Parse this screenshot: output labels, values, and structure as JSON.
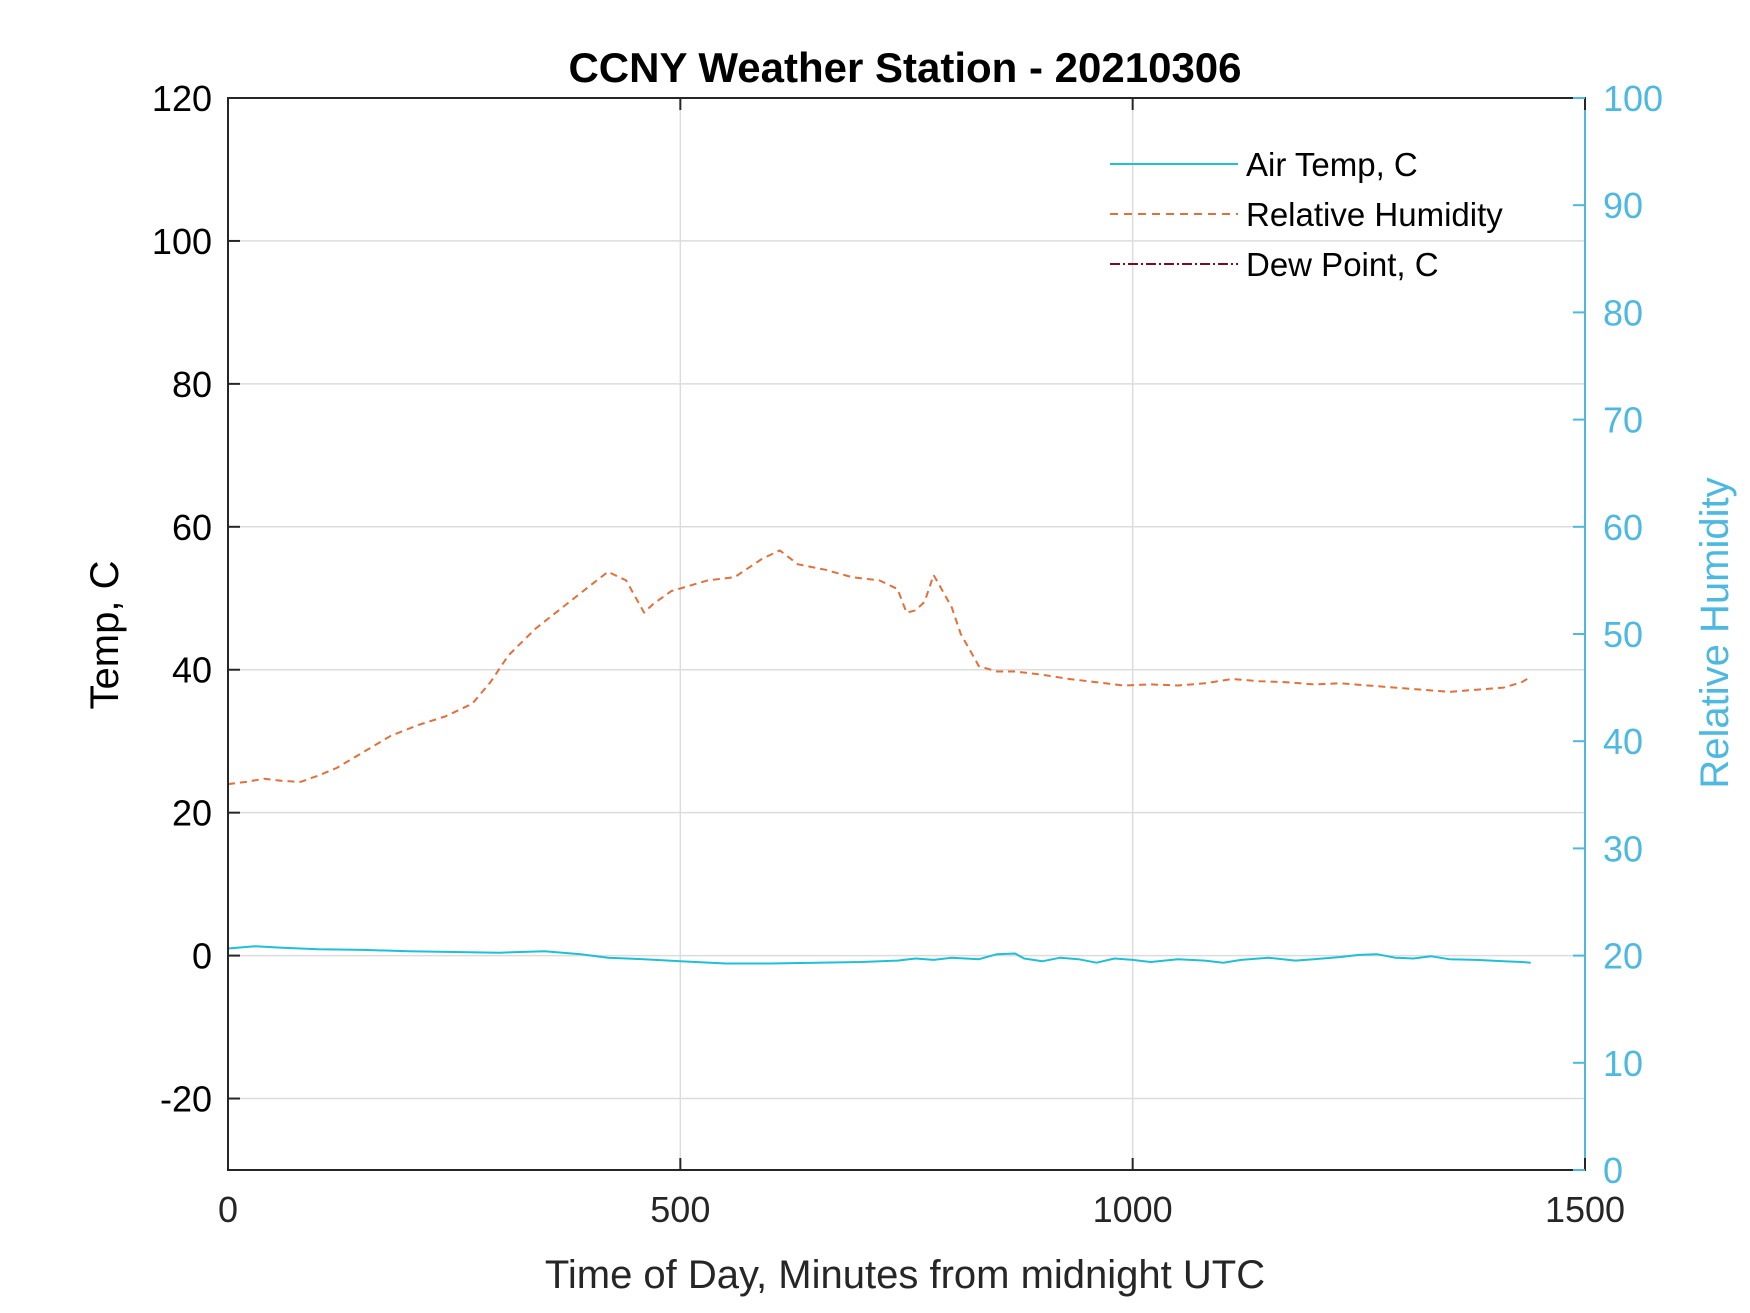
{
  "chart_data": {
    "type": "line",
    "title": "CCNY Weather Station - 20210306",
    "xlabel": "Time of Day, Minutes from midnight UTC",
    "ylabel_left": "Temp, C",
    "ylabel_right": "Relative Humidity",
    "xlim": [
      0,
      1500
    ],
    "ylim_left": [
      -30,
      120
    ],
    "ylim_right": [
      0,
      100
    ],
    "x_ticks": [
      "0",
      "500",
      "1000",
      "1500"
    ],
    "y_ticks_left": [
      "120",
      "100",
      "80",
      "60",
      "40",
      "20",
      "0",
      "-20"
    ],
    "y_ticks_right": [
      "100",
      "90",
      "80",
      "70",
      "60",
      "50",
      "40",
      "30",
      "20",
      "10",
      "0"
    ],
    "grid": true,
    "legend_position": "top-right",
    "colors": {
      "air_temp": "#1fbfd6",
      "relative_humidity": "#e2703a",
      "dew_point": "#7a0e1e",
      "right_axis": "#4db8e0",
      "grid": "#dcdcdc",
      "axis": "#262626"
    },
    "series": [
      {
        "name": "Air Temp, C",
        "axis": "left",
        "style": "solid",
        "x": [
          0,
          30,
          60,
          100,
          150,
          200,
          250,
          300,
          350,
          390,
          420,
          460,
          500,
          550,
          600,
          650,
          700,
          740,
          760,
          780,
          800,
          830,
          850,
          870,
          880,
          900,
          920,
          940,
          960,
          980,
          1000,
          1020,
          1050,
          1080,
          1100,
          1120,
          1150,
          1180,
          1200,
          1230,
          1250,
          1270,
          1290,
          1310,
          1330,
          1350,
          1380,
          1410,
          1430,
          1440
        ],
        "values": [
          1.0,
          1.3,
          1.1,
          0.9,
          0.8,
          0.6,
          0.5,
          0.4,
          0.6,
          0.2,
          -0.3,
          -0.5,
          -0.8,
          -1.1,
          -1.1,
          -1.0,
          -0.9,
          -0.7,
          -0.4,
          -0.6,
          -0.3,
          -0.5,
          0.2,
          0.3,
          -0.4,
          -0.8,
          -0.3,
          -0.5,
          -1.0,
          -0.4,
          -0.6,
          -0.9,
          -0.5,
          -0.7,
          -1.0,
          -0.6,
          -0.3,
          -0.7,
          -0.5,
          -0.2,
          0.1,
          0.2,
          -0.3,
          -0.4,
          -0.1,
          -0.5,
          -0.6,
          -0.8,
          -0.9,
          -1.0
        ]
      },
      {
        "name": "Relative Humidity",
        "axis": "right",
        "style": "dashed",
        "x": [
          0,
          20,
          40,
          60,
          80,
          100,
          120,
          150,
          180,
          210,
          240,
          270,
          290,
          310,
          340,
          370,
          400,
          420,
          440,
          460,
          470,
          490,
          510,
          530,
          560,
          590,
          610,
          630,
          660,
          690,
          720,
          740,
          750,
          760,
          770,
          780,
          790,
          800,
          810,
          830,
          850,
          870,
          900,
          930,
          960,
          990,
          1020,
          1050,
          1080,
          1110,
          1140,
          1170,
          1200,
          1230,
          1260,
          1290,
          1320,
          1350,
          1380,
          1410,
          1430,
          1440
        ],
        "values": [
          36,
          36.2,
          36.5,
          36.3,
          36.2,
          36.8,
          37.5,
          39,
          40.5,
          41.5,
          42.3,
          43.5,
          45.5,
          48,
          50.5,
          52.5,
          54.5,
          55.8,
          55,
          52,
          52.8,
          54,
          54.5,
          55,
          55.3,
          57,
          57.8,
          56.5,
          56,
          55.3,
          55,
          54.2,
          52,
          52.2,
          53,
          55.5,
          54,
          52.5,
          50,
          47,
          46.5,
          46.5,
          46.2,
          45.8,
          45.5,
          45.2,
          45.3,
          45.2,
          45.4,
          45.8,
          45.6,
          45.5,
          45.3,
          45.4,
          45.2,
          45.0,
          44.8,
          44.6,
          44.8,
          45.0,
          45.5,
          46.0
        ]
      },
      {
        "name": "Dew Point, C",
        "axis": "left",
        "style": "dashdot",
        "x": [],
        "values": []
      }
    ]
  }
}
